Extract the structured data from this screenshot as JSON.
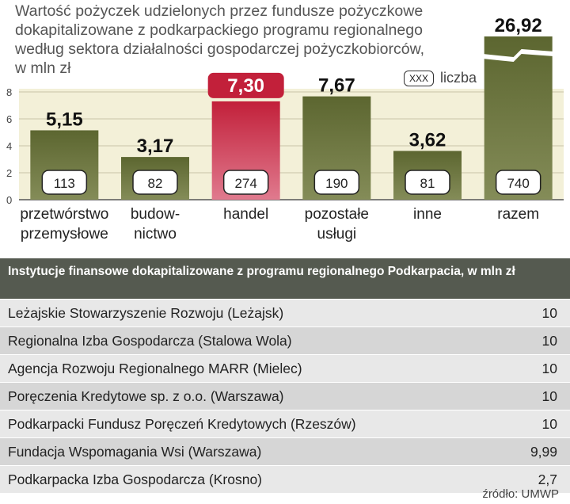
{
  "chart_data": {
    "type": "bar",
    "title_lines": [
      "Wartość pożyczek udzielonych przez fundusze pożyczkowe",
      "dokapitalizowane z podkarpackiego programu regionalnego",
      "według sektora działalności gospodarczej pożyczkobiorców,",
      "w mln zł"
    ],
    "yticks": [
      "0",
      "2",
      "4",
      "6",
      "8"
    ],
    "ylim": [
      0,
      8
    ],
    "axis_break_on": "razem",
    "legend": {
      "chip": "XXX",
      "label": "liczba"
    },
    "categories": [
      {
        "name": "przetwórstwo przemysłowe",
        "line1": "przetwórstwo",
        "line2": "przemysłowe",
        "value": 5.15,
        "value_label": "5,15",
        "count": "113",
        "highlight": false
      },
      {
        "name": "budownictwo",
        "line1": "budow-",
        "line2": "nictwo",
        "value": 3.17,
        "value_label": "3,17",
        "count": "82",
        "highlight": false
      },
      {
        "name": "handel",
        "line1": "handel",
        "line2": "",
        "value": 7.3,
        "value_label": "7,30",
        "count": "274",
        "highlight": true
      },
      {
        "name": "pozostałe usługi",
        "line1": "pozostałe",
        "line2": "usługi",
        "value": 7.67,
        "value_label": "7,67",
        "count": "190",
        "highlight": false
      },
      {
        "name": "inne",
        "line1": "inne",
        "line2": "",
        "value": 3.62,
        "value_label": "3,62",
        "count": "81",
        "highlight": false
      },
      {
        "name": "razem",
        "line1": "razem",
        "line2": "",
        "value": 26.92,
        "value_label": "26,92",
        "count": "740",
        "highlight": false
      }
    ],
    "colors": {
      "bar": "#5c6630",
      "bar_light": "#848c58",
      "highlight": "#c2203a",
      "highlight_light": "#e07a8e",
      "plot_bg": "#f3f0d8"
    }
  },
  "table": {
    "header": "Instytucje finansowe dokapitalizowane z programu regionalnego Podkarpacia, w mln zł",
    "rows": [
      {
        "name": "Leżajskie Stowarzyszenie Rozwoju (Leżajsk)",
        "value": "10"
      },
      {
        "name": "Regionalna Izba Gospodarcza (Stalowa Wola)",
        "value": "10"
      },
      {
        "name": "Agencja Rozwoju Regionalnego MARR (Mielec)",
        "value": "10"
      },
      {
        "name": "Poręczenia Kredytowe sp. z o.o. (Warszawa)",
        "value": "10"
      },
      {
        "name": "Podkarpacki Fundusz Poręczeń Kredytowych (Rzeszów)",
        "value": "10"
      },
      {
        "name": "Fundacja Wspomagania Wsi (Warszawa)",
        "value": "9,99"
      },
      {
        "name": "Podkarpacka Izba Gospodarcza (Krosno)",
        "value": "2,7"
      }
    ]
  },
  "source": "źródło: UMWP"
}
